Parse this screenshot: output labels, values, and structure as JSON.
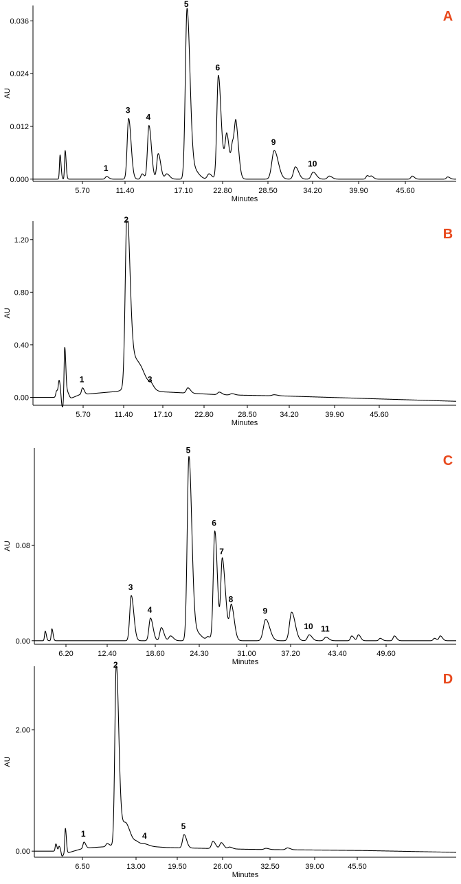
{
  "accent_color": "#e8491d",
  "chart_data": [
    {
      "type": "line",
      "panel": "A",
      "xlabel": "Minutes",
      "ylabel": "AU",
      "xticks": [
        "5.70",
        "11.40",
        "17.10",
        "22.80",
        "28.50",
        "34.20",
        "39.90",
        "45.60"
      ],
      "yticks": [
        "0.000",
        "0.012",
        "0.024",
        "0.036"
      ],
      "xlim": [
        0,
        50
      ],
      "ylim": [
        -0.0005,
        0.0395
      ],
      "baseline": [
        [
          0,
          0.0
        ],
        [
          50,
          0.0
        ]
      ],
      "peaks": [
        {
          "label": "",
          "x": 3.2,
          "y": 0.0055,
          "w": 0.07
        },
        {
          "label": "",
          "x": 3.8,
          "y": 0.0065,
          "w": 0.07
        },
        {
          "label": "1",
          "x": 8.7,
          "y": 0.0006,
          "w": 0.15
        },
        {
          "label": "3",
          "x": 11.3,
          "y": 0.0138,
          "w": 0.17
        },
        {
          "label": "",
          "x": 12.9,
          "y": 0.0012,
          "w": 0.15
        },
        {
          "label": "4",
          "x": 13.7,
          "y": 0.0122,
          "w": 0.17
        },
        {
          "label": "",
          "x": 14.8,
          "y": 0.0058,
          "w": 0.17
        },
        {
          "label": "",
          "x": 15.8,
          "y": 0.0012,
          "w": 0.2
        },
        {
          "label": "5",
          "x": 18.2,
          "y": 0.0385,
          "w": 0.2
        },
        {
          "label": "",
          "x": 18.9,
          "y": 0.0024,
          "w": 0.35
        },
        {
          "label": "",
          "x": 20.8,
          "y": 0.0012,
          "w": 0.2
        },
        {
          "label": "6",
          "x": 21.9,
          "y": 0.0235,
          "w": 0.18
        },
        {
          "label": "",
          "x": 22.7,
          "y": 0.0042,
          "w": 0.3
        },
        {
          "label": "",
          "x": 22.9,
          "y": 0.0065,
          "w": 0.17
        },
        {
          "label": "",
          "x": 23.6,
          "y": 0.0068,
          "w": 0.17
        },
        {
          "label": "",
          "x": 24.0,
          "y": 0.0105,
          "w": 0.18
        },
        {
          "label": "9",
          "x": 28.5,
          "y": 0.0065,
          "w": 0.28
        },
        {
          "label": "",
          "x": 31.0,
          "y": 0.0028,
          "w": 0.22
        },
        {
          "label": "10",
          "x": 33.1,
          "y": 0.0016,
          "w": 0.22
        },
        {
          "label": "",
          "x": 35.0,
          "y": 0.0007,
          "w": 0.2
        },
        {
          "label": "",
          "x": 39.5,
          "y": 0.0008,
          "w": 0.15
        },
        {
          "label": "",
          "x": 40.0,
          "y": 0.0006,
          "w": 0.15
        },
        {
          "label": "",
          "x": 44.8,
          "y": 0.0007,
          "w": 0.15
        },
        {
          "label": "",
          "x": 49.0,
          "y": 0.0005,
          "w": 0.15
        }
      ]
    },
    {
      "type": "line",
      "panel": "B",
      "xlabel": "Minutes",
      "ylabel": "AU",
      "xticks": [
        "5.70",
        "11.40",
        "17.10",
        "22.80",
        "28.50",
        "34.20",
        "39.90",
        "45.60"
      ],
      "yticks": [
        "0.00",
        "0.40",
        "0.80",
        "1.20"
      ],
      "xlim": [
        0,
        50
      ],
      "ylim": [
        -0.06,
        1.34
      ],
      "baseline": [
        [
          0,
          0.0
        ],
        [
          3.3,
          0.0
        ],
        [
          4.0,
          -0.02
        ],
        [
          5.5,
          0.02
        ],
        [
          9.0,
          0.04
        ],
        [
          10.8,
          0.05
        ],
        [
          16.0,
          0.04
        ],
        [
          22.0,
          0.02
        ],
        [
          30.0,
          0.01
        ],
        [
          40.0,
          -0.01
        ],
        [
          50.0,
          -0.03
        ]
      ],
      "peaks": [
        {
          "label": "",
          "x": 2.8,
          "y": 0.05,
          "w": 0.1
        },
        {
          "label": "",
          "x": 3.1,
          "y": 0.12,
          "w": 0.1
        },
        {
          "label": "",
          "x": 3.45,
          "y": -0.08,
          "w": 0.12
        },
        {
          "label": "",
          "x": 3.75,
          "y": 0.42,
          "w": 0.08
        },
        {
          "label": "",
          "x": 4.1,
          "y": 0.05,
          "w": 0.1
        },
        {
          "label": "1",
          "x": 5.85,
          "y": 0.05,
          "w": 0.12
        },
        {
          "label": "2",
          "x": 11.1,
          "y": 1.25,
          "w": 0.2
        },
        {
          "label": "",
          "x": 11.8,
          "y": 0.25,
          "w": 0.55
        },
        {
          "label": "",
          "x": 13.0,
          "y": 0.05,
          "w": 0.5
        },
        {
          "label": "3",
          "x": 13.9,
          "y": 0.03,
          "w": 0.2
        },
        {
          "label": "",
          "x": 18.3,
          "y": 0.04,
          "w": 0.18
        },
        {
          "label": "",
          "x": 22.0,
          "y": 0.02,
          "w": 0.18
        },
        {
          "label": "",
          "x": 23.5,
          "y": 0.01,
          "w": 0.2
        },
        {
          "label": "",
          "x": 28.5,
          "y": 0.008,
          "w": 0.25
        }
      ]
    },
    {
      "type": "line",
      "panel": "C",
      "xlabel": "Minutes",
      "ylabel": "AU",
      "xticks": [
        "6.20",
        "12.40",
        "18.60",
        "24.30",
        "31.00",
        "37.20",
        "43.40",
        "49.60"
      ],
      "yticks": [
        "0.00",
        "0.08"
      ],
      "xlim": [
        0,
        50.5
      ],
      "ylim": [
        -0.003,
        0.162
      ],
      "baseline": [
        [
          0,
          0.0
        ],
        [
          50.5,
          0.0
        ]
      ],
      "peaks": [
        {
          "label": "",
          "x": 1.3,
          "y": 0.008,
          "w": 0.08
        },
        {
          "label": "",
          "x": 2.1,
          "y": 0.01,
          "w": 0.08
        },
        {
          "label": "3",
          "x": 11.6,
          "y": 0.038,
          "w": 0.18
        },
        {
          "label": "4",
          "x": 13.9,
          "y": 0.019,
          "w": 0.18
        },
        {
          "label": "",
          "x": 15.2,
          "y": 0.011,
          "w": 0.18
        },
        {
          "label": "",
          "x": 16.3,
          "y": 0.004,
          "w": 0.2
        },
        {
          "label": "5",
          "x": 18.5,
          "y": 0.153,
          "w": 0.2
        },
        {
          "label": "",
          "x": 19.2,
          "y": 0.008,
          "w": 0.4
        },
        {
          "label": "",
          "x": 20.8,
          "y": 0.003,
          "w": 0.2
        },
        {
          "label": "6",
          "x": 21.6,
          "y": 0.092,
          "w": 0.18
        },
        {
          "label": "7",
          "x": 22.5,
          "y": 0.068,
          "w": 0.18
        },
        {
          "label": "",
          "x": 23.0,
          "y": 0.012,
          "w": 0.2
        },
        {
          "label": "8",
          "x": 23.6,
          "y": 0.028,
          "w": 0.2
        },
        {
          "label": "9",
          "x": 27.7,
          "y": 0.018,
          "w": 0.28
        },
        {
          "label": "",
          "x": 30.8,
          "y": 0.024,
          "w": 0.25
        },
        {
          "label": "10",
          "x": 32.9,
          "y": 0.005,
          "w": 0.2
        },
        {
          "label": "11",
          "x": 34.9,
          "y": 0.003,
          "w": 0.2
        },
        {
          "label": "",
          "x": 38.0,
          "y": 0.004,
          "w": 0.15
        },
        {
          "label": "",
          "x": 38.8,
          "y": 0.005,
          "w": 0.15
        },
        {
          "label": "",
          "x": 41.4,
          "y": 0.002,
          "w": 0.15
        },
        {
          "label": "",
          "x": 43.1,
          "y": 0.004,
          "w": 0.15
        },
        {
          "label": "",
          "x": 47.9,
          "y": 0.002,
          "w": 0.15
        },
        {
          "label": "",
          "x": 48.6,
          "y": 0.004,
          "w": 0.15
        }
      ]
    },
    {
      "type": "line",
      "panel": "D",
      "xlabel": "Minutes",
      "ylabel": "AU",
      "xticks": [
        "6.50",
        "13.00",
        "19.50",
        "26.00",
        "32.50",
        "39.00",
        "45.50"
      ],
      "yticks": [
        "0.00",
        "2.00"
      ],
      "xlim": [
        0,
        51
      ],
      "ylim": [
        -0.1,
        3.05
      ],
      "baseline": [
        [
          0,
          0.0
        ],
        [
          3.3,
          0.0
        ],
        [
          4.0,
          -0.03
        ],
        [
          6.0,
          0.05
        ],
        [
          9.3,
          0.08
        ],
        [
          11.5,
          0.1
        ],
        [
          16.0,
          0.06
        ],
        [
          26.0,
          0.03
        ],
        [
          40.0,
          0.01
        ],
        [
          51.0,
          -0.02
        ]
      ],
      "peaks": [
        {
          "label": "",
          "x": 2.6,
          "y": 0.12,
          "w": 0.08
        },
        {
          "label": "",
          "x": 3.0,
          "y": 0.08,
          "w": 0.08
        },
        {
          "label": "",
          "x": 3.35,
          "y": -0.08,
          "w": 0.1
        },
        {
          "label": "",
          "x": 3.75,
          "y": 0.4,
          "w": 0.07
        },
        {
          "label": "1",
          "x": 6.0,
          "y": 0.1,
          "w": 0.12
        },
        {
          "label": "",
          "x": 8.8,
          "y": 0.05,
          "w": 0.15
        },
        {
          "label": "2",
          "x": 9.9,
          "y": 2.85,
          "w": 0.17
        },
        {
          "label": "",
          "x": 10.5,
          "y": 0.35,
          "w": 0.45
        },
        {
          "label": "",
          "x": 11.2,
          "y": 0.12,
          "w": 0.3
        },
        {
          "label": "",
          "x": 12.4,
          "y": 0.05,
          "w": 0.3
        },
        {
          "label": "4",
          "x": 13.4,
          "y": 0.03,
          "w": 0.3
        },
        {
          "label": "5",
          "x": 18.1,
          "y": 0.22,
          "w": 0.18
        },
        {
          "label": "",
          "x": 21.6,
          "y": 0.12,
          "w": 0.18
        },
        {
          "label": "",
          "x": 22.6,
          "y": 0.1,
          "w": 0.18
        },
        {
          "label": "",
          "x": 23.6,
          "y": 0.03,
          "w": 0.2
        },
        {
          "label": "",
          "x": 28.0,
          "y": 0.02,
          "w": 0.2
        },
        {
          "label": "",
          "x": 30.6,
          "y": 0.03,
          "w": 0.2
        }
      ]
    }
  ]
}
